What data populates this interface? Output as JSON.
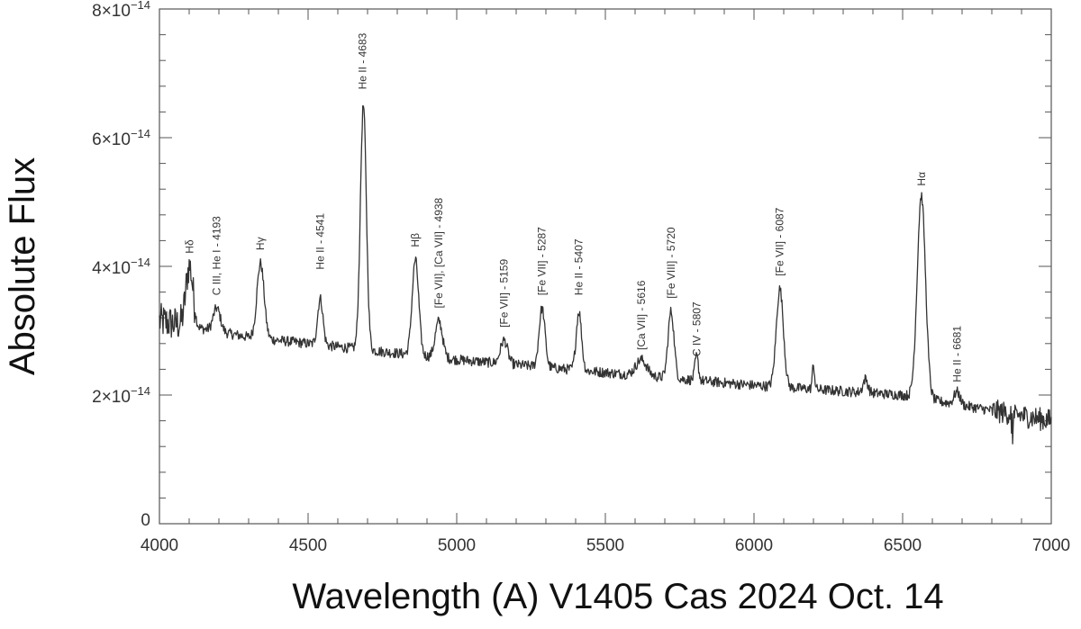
{
  "chart_data": {
    "type": "line",
    "xlabel": "Wavelength (A) V1405 Cas 2024 Oct. 14",
    "ylabel": "Absolute Flux",
    "xlim": [
      4000,
      7000
    ],
    "ylim": [
      0,
      8e-14
    ],
    "x_ticks": [
      4000,
      4500,
      5000,
      5500,
      6000,
      6500,
      7000
    ],
    "x_tick_labels": [
      "4000",
      "4500",
      "5000",
      "5500",
      "6000",
      "6500",
      "7000"
    ],
    "y_ticks": [
      0,
      2e-14,
      4e-14,
      6e-14,
      8e-14
    ],
    "y_tick_labels": [
      {
        "base": "0",
        "exp": ""
      },
      {
        "base": "2×10",
        "exp": "−14"
      },
      {
        "base": "4×10",
        "exp": "−14"
      },
      {
        "base": "6×10",
        "exp": "−14"
      },
      {
        "base": "8×10",
        "exp": "−14"
      }
    ],
    "grid": false,
    "series": [
      {
        "color": "#333333",
        "continuum": [
          [
            4000,
            3.15e-14
          ],
          [
            4300,
            2.9e-14
          ],
          [
            4600,
            2.75e-14
          ],
          [
            5000,
            2.55e-14
          ],
          [
            5500,
            2.35e-14
          ],
          [
            6000,
            2.15e-14
          ],
          [
            6500,
            2e-14
          ],
          [
            7000,
            1.6e-14
          ]
        ],
        "lines": [
          {
            "x": 4101,
            "peak": 4e-14,
            "width": 12
          },
          {
            "x": 4193,
            "peak": 3.35e-14,
            "width": 12
          },
          {
            "x": 4340,
            "peak": 4.05e-14,
            "width": 12
          },
          {
            "x": 4541,
            "peak": 3.5e-14,
            "width": 9
          },
          {
            "x": 4686,
            "peak": 6.5e-14,
            "width": 10
          },
          {
            "x": 4861,
            "peak": 4.1e-14,
            "width": 11
          },
          {
            "x": 4940,
            "peak": 3.15e-14,
            "width": 12
          },
          {
            "x": 5159,
            "peak": 2.85e-14,
            "width": 12
          },
          {
            "x": 5287,
            "peak": 3.35e-14,
            "width": 10
          },
          {
            "x": 5411,
            "peak": 3.3e-14,
            "width": 9
          },
          {
            "x": 5621,
            "peak": 2.55e-14,
            "width": 18
          },
          {
            "x": 5721,
            "peak": 3.3e-14,
            "width": 10
          },
          {
            "x": 5807,
            "peak": 2.6e-14,
            "width": 6
          },
          {
            "x": 6087,
            "peak": 3.65e-14,
            "width": 12
          },
          {
            "x": 6200,
            "peak": 2.45e-14,
            "width": 4
          },
          {
            "x": 6375,
            "peak": 2.25e-14,
            "width": 8
          },
          {
            "x": 6563,
            "peak": 5.1e-14,
            "width": 14
          },
          {
            "x": 6683,
            "peak": 2.05e-14,
            "width": 10
          }
        ]
      }
    ],
    "annotations": [
      {
        "text": "Hδ",
        "x": 4101,
        "y": 4.2e-14
      },
      {
        "text": "C III, He I - 4193",
        "x": 4193,
        "y": 3.55e-14
      },
      {
        "text": "Hγ",
        "x": 4340,
        "y": 4.25e-14
      },
      {
        "text": "He II - 4541",
        "x": 4541,
        "y": 3.95e-14
      },
      {
        "text": "He II - 4683",
        "x": 4683,
        "y": 6.75e-14
      },
      {
        "text": "Hβ",
        "x": 4861,
        "y": 4.3e-14
      },
      {
        "text": "[Fe VII], [Ca VII] - 4938",
        "x": 4940,
        "y": 3.35e-14
      },
      {
        "text": "[Fe VII] - 5159",
        "x": 5159,
        "y": 3.05e-14
      },
      {
        "text": "[Fe VII] - 5287",
        "x": 5287,
        "y": 3.55e-14
      },
      {
        "text": "He II - 5407",
        "x": 5411,
        "y": 3.55e-14
      },
      {
        "text": "[Ca VII] - 5616",
        "x": 5621,
        "y": 2.7e-14
      },
      {
        "text": "[Fe VIII] - 5720",
        "x": 5721,
        "y": 3.5e-14
      },
      {
        "text": "C IV - 5807",
        "x": 5807,
        "y": 2.6e-14
      },
      {
        "text": "[Fe VII] - 6087",
        "x": 6087,
        "y": 3.85e-14
      },
      {
        "text": "Hα",
        "x": 6563,
        "y": 5.25e-14
      },
      {
        "text": "He II - 6681",
        "x": 6683,
        "y": 2.2e-14
      }
    ]
  }
}
